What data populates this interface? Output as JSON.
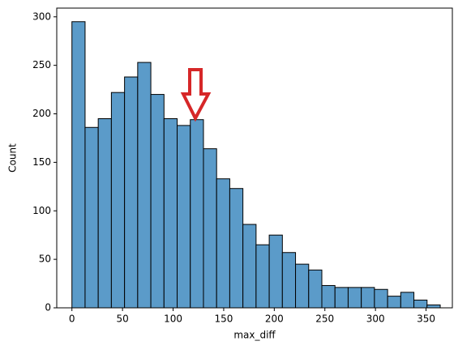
{
  "chart_data": {
    "type": "histogram",
    "xlabel": "max_diff",
    "ylabel": "Count",
    "bins": [
      0,
      13,
      26,
      39,
      52,
      65,
      78,
      91,
      104,
      117,
      130,
      143,
      156,
      169,
      182,
      195,
      208,
      221,
      234,
      247,
      260,
      273,
      286,
      299,
      312,
      325,
      338,
      351,
      364
    ],
    "values": [
      295,
      186,
      195,
      222,
      238,
      253,
      220,
      195,
      188,
      194,
      164,
      133,
      123,
      86,
      65,
      75,
      57,
      45,
      39,
      23,
      21,
      21,
      21,
      19,
      12,
      16,
      8,
      3
    ],
    "color": "#5b9bc9",
    "xlim": [
      -15,
      376
    ],
    "xticks": [
      0,
      50,
      100,
      150,
      200,
      250,
      300,
      350
    ],
    "ylim": [
      0,
      309
    ],
    "yticks": [
      0,
      50,
      100,
      150,
      200,
      250,
      300
    ]
  }
}
